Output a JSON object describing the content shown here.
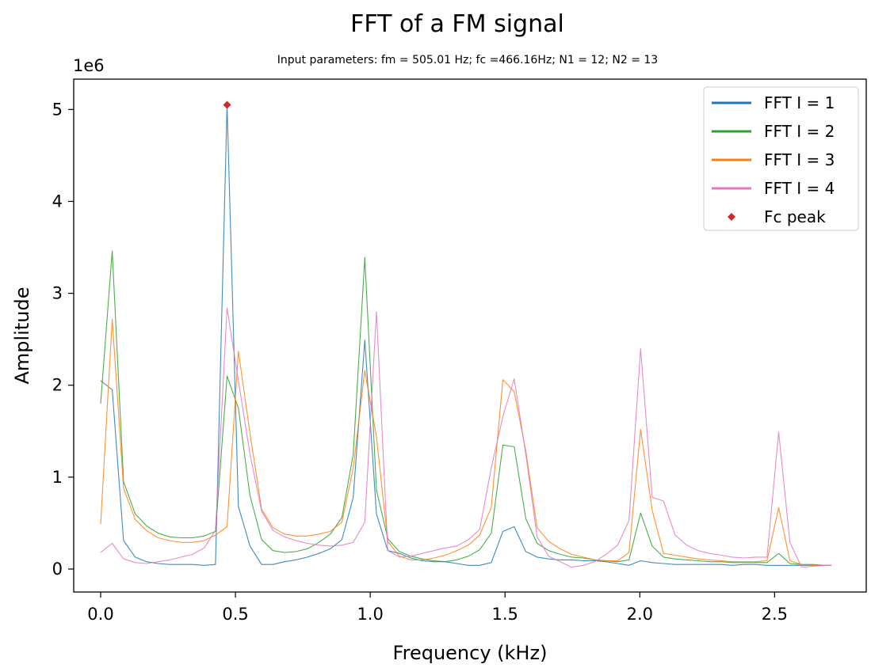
{
  "chart_data": {
    "type": "line",
    "title": "FFT of a FM signal",
    "subtitle": "Input parameters:  fm = 505.01 Hz;  fc =466.16Hz;  N1 = 12;  N2 = 13",
    "xlabel": "Frequency (kHz)",
    "ylabel": "Amplitude",
    "y_offset_label": "1e6",
    "xlim": [
      -0.1,
      2.84
    ],
    "ylim": [
      -250000,
      5330000
    ],
    "x_ticks": [
      0.0,
      0.5,
      1.0,
      1.5,
      2.0,
      2.5
    ],
    "x_tick_labels": [
      "0.0",
      "0.5",
      "1.0",
      "1.5",
      "2.0",
      "2.5"
    ],
    "y_ticks": [
      0,
      1000000,
      2000000,
      3000000,
      4000000,
      5000000
    ],
    "y_tick_labels": [
      "0",
      "1",
      "2",
      "3",
      "4",
      "5"
    ],
    "grid": false,
    "legend_position": "top-right",
    "series": [
      {
        "name": "FFT I = 1",
        "color": "#1f77b4",
        "x": [
          0.0,
          0.043,
          0.085,
          0.128,
          0.17,
          0.213,
          0.256,
          0.298,
          0.341,
          0.384,
          0.426,
          0.469,
          0.511,
          0.554,
          0.597,
          0.639,
          0.682,
          0.724,
          0.767,
          0.81,
          0.852,
          0.895,
          0.937,
          0.98,
          1.023,
          1.065,
          1.108,
          1.151,
          1.193,
          1.236,
          1.278,
          1.321,
          1.364,
          1.406,
          1.449,
          1.492,
          1.534,
          1.577,
          1.619,
          1.662,
          1.705,
          1.747,
          1.79,
          1.833,
          1.875,
          1.918,
          1.96,
          2.003,
          2.046,
          2.088,
          2.131,
          2.174,
          2.216,
          2.259,
          2.301,
          2.344,
          2.387,
          2.429,
          2.472,
          2.515,
          2.557,
          2.6,
          2.642,
          2.685,
          2.71
        ],
        "y": [
          2050000,
          1950000,
          310000,
          130000,
          80000,
          60000,
          50000,
          50000,
          50000,
          40000,
          50000,
          5050000,
          680000,
          250000,
          50000,
          50000,
          80000,
          100000,
          130000,
          170000,
          220000,
          320000,
          780000,
          2490000,
          600000,
          200000,
          170000,
          120000,
          90000,
          80000,
          80000,
          60000,
          40000,
          40000,
          70000,
          410000,
          460000,
          190000,
          130000,
          110000,
          100000,
          100000,
          90000,
          90000,
          80000,
          60000,
          40000,
          90000,
          70000,
          60000,
          50000,
          50000,
          50000,
          50000,
          50000,
          40000,
          50000,
          50000,
          40000,
          40000,
          40000,
          40000,
          40000,
          40000,
          40000
        ]
      },
      {
        "name": "FFT I = 2",
        "color": "#2ca02c",
        "x": [
          0.0,
          0.043,
          0.085,
          0.128,
          0.17,
          0.213,
          0.256,
          0.298,
          0.341,
          0.384,
          0.426,
          0.469,
          0.511,
          0.554,
          0.597,
          0.639,
          0.682,
          0.724,
          0.767,
          0.81,
          0.852,
          0.895,
          0.937,
          0.98,
          1.023,
          1.065,
          1.108,
          1.151,
          1.193,
          1.236,
          1.278,
          1.321,
          1.364,
          1.406,
          1.449,
          1.492,
          1.534,
          1.577,
          1.619,
          1.662,
          1.705,
          1.747,
          1.79,
          1.833,
          1.875,
          1.918,
          1.96,
          2.003,
          2.046,
          2.088,
          2.131,
          2.174,
          2.216,
          2.259,
          2.301,
          2.344,
          2.387,
          2.429,
          2.472,
          2.515,
          2.557,
          2.6,
          2.642,
          2.685,
          2.71
        ],
        "y": [
          1800000,
          3460000,
          950000,
          600000,
          470000,
          390000,
          350000,
          340000,
          340000,
          360000,
          410000,
          2100000,
          1750000,
          800000,
          320000,
          200000,
          180000,
          190000,
          220000,
          290000,
          380000,
          560000,
          1250000,
          3390000,
          860000,
          330000,
          190000,
          140000,
          110000,
          90000,
          80000,
          100000,
          140000,
          210000,
          390000,
          1350000,
          1330000,
          550000,
          280000,
          200000,
          160000,
          130000,
          120000,
          100000,
          90000,
          80000,
          100000,
          610000,
          250000,
          130000,
          110000,
          100000,
          90000,
          80000,
          80000,
          70000,
          70000,
          70000,
          70000,
          170000,
          60000,
          50000,
          50000,
          40000,
          40000
        ]
      },
      {
        "name": "FFT I = 3",
        "color": "#ff7f0e",
        "x": [
          0.0,
          0.043,
          0.085,
          0.128,
          0.17,
          0.213,
          0.256,
          0.298,
          0.341,
          0.384,
          0.426,
          0.469,
          0.511,
          0.554,
          0.597,
          0.639,
          0.682,
          0.724,
          0.767,
          0.81,
          0.852,
          0.895,
          0.937,
          0.98,
          1.023,
          1.065,
          1.108,
          1.151,
          1.193,
          1.236,
          1.278,
          1.321,
          1.364,
          1.406,
          1.449,
          1.492,
          1.534,
          1.577,
          1.619,
          1.662,
          1.705,
          1.747,
          1.79,
          1.833,
          1.875,
          1.918,
          1.96,
          2.003,
          2.046,
          2.088,
          2.131,
          2.174,
          2.216,
          2.259,
          2.301,
          2.344,
          2.387,
          2.429,
          2.472,
          2.515,
          2.557,
          2.6,
          2.642,
          2.685,
          2.71
        ],
        "y": [
          490000,
          2720000,
          880000,
          540000,
          420000,
          340000,
          310000,
          290000,
          290000,
          310000,
          370000,
          460000,
          2370000,
          1480000,
          650000,
          450000,
          380000,
          360000,
          360000,
          380000,
          410000,
          510000,
          1100000,
          2160000,
          1440000,
          300000,
          140000,
          100000,
          100000,
          120000,
          150000,
          200000,
          260000,
          370000,
          670000,
          2060000,
          1930000,
          1290000,
          450000,
          300000,
          220000,
          160000,
          130000,
          100000,
          90000,
          90000,
          180000,
          1520000,
          640000,
          170000,
          150000,
          130000,
          110000,
          100000,
          90000,
          80000,
          80000,
          80000,
          90000,
          670000,
          90000,
          50000,
          40000,
          40000,
          40000
        ]
      },
      {
        "name": "FFT I = 4",
        "color": "#e377c2",
        "x": [
          0.0,
          0.043,
          0.085,
          0.128,
          0.17,
          0.213,
          0.256,
          0.298,
          0.341,
          0.384,
          0.426,
          0.469,
          0.511,
          0.554,
          0.597,
          0.639,
          0.682,
          0.724,
          0.767,
          0.81,
          0.852,
          0.895,
          0.937,
          0.98,
          1.023,
          1.065,
          1.108,
          1.151,
          1.193,
          1.236,
          1.278,
          1.321,
          1.364,
          1.406,
          1.449,
          1.492,
          1.534,
          1.577,
          1.619,
          1.662,
          1.705,
          1.747,
          1.79,
          1.833,
          1.875,
          1.918,
          1.96,
          2.003,
          2.046,
          2.088,
          2.131,
          2.174,
          2.216,
          2.259,
          2.301,
          2.344,
          2.387,
          2.429,
          2.472,
          2.515,
          2.557,
          2.6,
          2.642,
          2.685,
          2.71
        ],
        "y": [
          180000,
          280000,
          110000,
          70000,
          60000,
          80000,
          100000,
          130000,
          160000,
          230000,
          420000,
          2840000,
          2050000,
          1250000,
          630000,
          420000,
          350000,
          310000,
          280000,
          260000,
          250000,
          260000,
          290000,
          510000,
          2800000,
          200000,
          130000,
          140000,
          170000,
          200000,
          230000,
          250000,
          320000,
          430000,
          1100000,
          1660000,
          2070000,
          1250000,
          350000,
          140000,
          80000,
          20000,
          40000,
          80000,
          160000,
          260000,
          530000,
          2400000,
          780000,
          740000,
          370000,
          260000,
          200000,
          170000,
          150000,
          130000,
          120000,
          130000,
          130000,
          1490000,
          290000,
          20000,
          30000,
          40000,
          40000
        ]
      }
    ],
    "markers": [
      {
        "name": "Fc peak",
        "color": "#d62728",
        "shape": "diamond",
        "x": 0.469,
        "y": 5050000
      }
    ]
  }
}
